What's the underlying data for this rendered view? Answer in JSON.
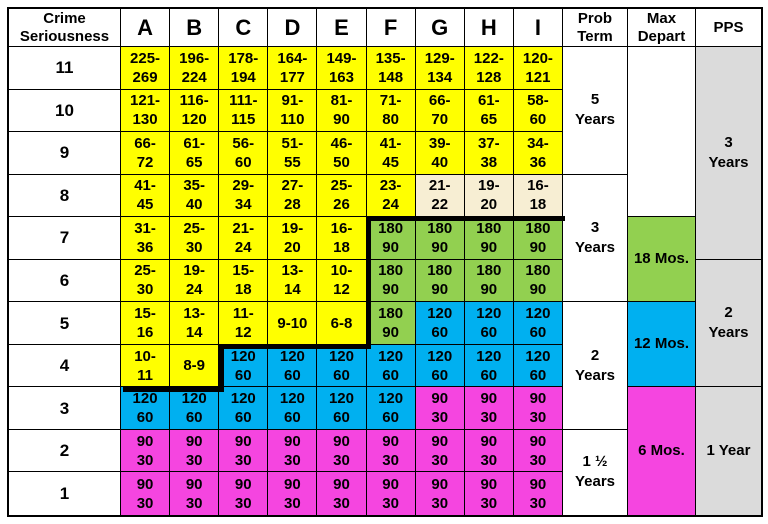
{
  "colors": {
    "yellow": "#FFFF00",
    "cream": "#F7EED3",
    "green": "#92D050",
    "blue": "#00B0F0",
    "magenta": "#F545E0",
    "gray": "#DBDBDB",
    "white": "#FFFFFF",
    "line": "#000000"
  },
  "header": {
    "crime_label_lines": [
      "Crime",
      "Seriousness"
    ],
    "offense_columns": [
      "A",
      "B",
      "C",
      "D",
      "E",
      "F",
      "G",
      "H",
      "I"
    ],
    "prob_term_lines": [
      "Prob",
      "Term"
    ],
    "max_depart_lines": [
      "Max",
      "Depart"
    ],
    "pps_label": "PPS"
  },
  "rows": [
    {
      "label": "11",
      "cells": [
        {
          "lines": [
            "225-",
            "269"
          ],
          "color": "yellow"
        },
        {
          "lines": [
            "196-",
            "224"
          ],
          "color": "yellow"
        },
        {
          "lines": [
            "178-",
            "194"
          ],
          "color": "yellow"
        },
        {
          "lines": [
            "164-",
            "177"
          ],
          "color": "yellow"
        },
        {
          "lines": [
            "149-",
            "163"
          ],
          "color": "yellow"
        },
        {
          "lines": [
            "135-",
            "148"
          ],
          "color": "yellow"
        },
        {
          "lines": [
            "129-",
            "134"
          ],
          "color": "yellow"
        },
        {
          "lines": [
            "122-",
            "128"
          ],
          "color": "yellow"
        },
        {
          "lines": [
            "120-",
            "121"
          ],
          "color": "yellow"
        }
      ]
    },
    {
      "label": "10",
      "cells": [
        {
          "lines": [
            "121-",
            "130"
          ],
          "color": "yellow"
        },
        {
          "lines": [
            "116-",
            "120"
          ],
          "color": "yellow"
        },
        {
          "lines": [
            "111-",
            "115"
          ],
          "color": "yellow"
        },
        {
          "lines": [
            "91-",
            "110"
          ],
          "color": "yellow"
        },
        {
          "lines": [
            "81-",
            "90"
          ],
          "color": "yellow"
        },
        {
          "lines": [
            "71-",
            "80"
          ],
          "color": "yellow"
        },
        {
          "lines": [
            "66-",
            "70"
          ],
          "color": "yellow"
        },
        {
          "lines": [
            "61-",
            "65"
          ],
          "color": "yellow"
        },
        {
          "lines": [
            "58-",
            "60"
          ],
          "color": "yellow"
        }
      ]
    },
    {
      "label": "9",
      "cells": [
        {
          "lines": [
            "66-",
            "72"
          ],
          "color": "yellow"
        },
        {
          "lines": [
            "61-",
            "65"
          ],
          "color": "yellow"
        },
        {
          "lines": [
            "56-",
            "60"
          ],
          "color": "yellow"
        },
        {
          "lines": [
            "51-",
            "55"
          ],
          "color": "yellow"
        },
        {
          "lines": [
            "46-",
            "50"
          ],
          "color": "yellow"
        },
        {
          "lines": [
            "41-",
            "45"
          ],
          "color": "yellow"
        },
        {
          "lines": [
            "39-",
            "40"
          ],
          "color": "yellow"
        },
        {
          "lines": [
            "37-",
            "38"
          ],
          "color": "yellow"
        },
        {
          "lines": [
            "34-",
            "36"
          ],
          "color": "yellow"
        }
      ]
    },
    {
      "label": "8",
      "cells": [
        {
          "lines": [
            "41-",
            "45"
          ],
          "color": "yellow"
        },
        {
          "lines": [
            "35-",
            "40"
          ],
          "color": "yellow"
        },
        {
          "lines": [
            "29-",
            "34"
          ],
          "color": "yellow"
        },
        {
          "lines": [
            "27-",
            "28"
          ],
          "color": "yellow"
        },
        {
          "lines": [
            "25-",
            "26"
          ],
          "color": "yellow"
        },
        {
          "lines": [
            "23-",
            "24"
          ],
          "color": "yellow"
        },
        {
          "lines": [
            "21-",
            "22"
          ],
          "color": "cream"
        },
        {
          "lines": [
            "19-",
            "20"
          ],
          "color": "cream"
        },
        {
          "lines": [
            "16-",
            "18"
          ],
          "color": "cream"
        }
      ]
    },
    {
      "label": "7",
      "cells": [
        {
          "lines": [
            "31-",
            "36"
          ],
          "color": "yellow"
        },
        {
          "lines": [
            "25-",
            "30"
          ],
          "color": "yellow"
        },
        {
          "lines": [
            "21-",
            "24"
          ],
          "color": "yellow"
        },
        {
          "lines": [
            "19-",
            "20"
          ],
          "color": "yellow"
        },
        {
          "lines": [
            "16-",
            "18"
          ],
          "color": "yellow"
        },
        {
          "lines": [
            "180",
            "90"
          ],
          "color": "green"
        },
        {
          "lines": [
            "180",
            "90"
          ],
          "color": "green"
        },
        {
          "lines": [
            "180",
            "90"
          ],
          "color": "green"
        },
        {
          "lines": [
            "180",
            "90"
          ],
          "color": "green"
        }
      ]
    },
    {
      "label": "6",
      "cells": [
        {
          "lines": [
            "25-",
            "30"
          ],
          "color": "yellow"
        },
        {
          "lines": [
            "19-",
            "24"
          ],
          "color": "yellow"
        },
        {
          "lines": [
            "15-",
            "18"
          ],
          "color": "yellow"
        },
        {
          "lines": [
            "13-",
            "14"
          ],
          "color": "yellow"
        },
        {
          "lines": [
            "10-",
            "12"
          ],
          "color": "yellow"
        },
        {
          "lines": [
            "180",
            "90"
          ],
          "color": "green"
        },
        {
          "lines": [
            "180",
            "90"
          ],
          "color": "green"
        },
        {
          "lines": [
            "180",
            "90"
          ],
          "color": "green"
        },
        {
          "lines": [
            "180",
            "90"
          ],
          "color": "green"
        }
      ]
    },
    {
      "label": "5",
      "cells": [
        {
          "lines": [
            "15-",
            "16"
          ],
          "color": "yellow"
        },
        {
          "lines": [
            "13-",
            "14"
          ],
          "color": "yellow"
        },
        {
          "lines": [
            "11-",
            "12"
          ],
          "color": "yellow"
        },
        {
          "lines": [
            "9-10"
          ],
          "color": "yellow"
        },
        {
          "lines": [
            "6-8"
          ],
          "color": "yellow"
        },
        {
          "lines": [
            "180",
            "90"
          ],
          "color": "green"
        },
        {
          "lines": [
            "120",
            "60"
          ],
          "color": "blue"
        },
        {
          "lines": [
            "120",
            "60"
          ],
          "color": "blue"
        },
        {
          "lines": [
            "120",
            "60"
          ],
          "color": "blue"
        }
      ]
    },
    {
      "label": "4",
      "cells": [
        {
          "lines": [
            "10-",
            "11"
          ],
          "color": "yellow"
        },
        {
          "lines": [
            "8-9"
          ],
          "color": "yellow"
        },
        {
          "lines": [
            "120",
            "60"
          ],
          "color": "blue"
        },
        {
          "lines": [
            "120",
            "60"
          ],
          "color": "blue"
        },
        {
          "lines": [
            "120",
            "60"
          ],
          "color": "blue"
        },
        {
          "lines": [
            "120",
            "60"
          ],
          "color": "blue"
        },
        {
          "lines": [
            "120",
            "60"
          ],
          "color": "blue"
        },
        {
          "lines": [
            "120",
            "60"
          ],
          "color": "blue"
        },
        {
          "lines": [
            "120",
            "60"
          ],
          "color": "blue"
        }
      ]
    },
    {
      "label": "3",
      "cells": [
        {
          "lines": [
            "120",
            "60"
          ],
          "color": "blue"
        },
        {
          "lines": [
            "120",
            "60"
          ],
          "color": "blue"
        },
        {
          "lines": [
            "120",
            "60"
          ],
          "color": "blue"
        },
        {
          "lines": [
            "120",
            "60"
          ],
          "color": "blue"
        },
        {
          "lines": [
            "120",
            "60"
          ],
          "color": "blue"
        },
        {
          "lines": [
            "120",
            "60"
          ],
          "color": "blue"
        },
        {
          "lines": [
            "90",
            "30"
          ],
          "color": "magenta"
        },
        {
          "lines": [
            "90",
            "30"
          ],
          "color": "magenta"
        },
        {
          "lines": [
            "90",
            "30"
          ],
          "color": "magenta"
        }
      ]
    },
    {
      "label": "2",
      "cells": [
        {
          "lines": [
            "90",
            "30"
          ],
          "color": "magenta"
        },
        {
          "lines": [
            "90",
            "30"
          ],
          "color": "magenta"
        },
        {
          "lines": [
            "90",
            "30"
          ],
          "color": "magenta"
        },
        {
          "lines": [
            "90",
            "30"
          ],
          "color": "magenta"
        },
        {
          "lines": [
            "90",
            "30"
          ],
          "color": "magenta"
        },
        {
          "lines": [
            "90",
            "30"
          ],
          "color": "magenta"
        },
        {
          "lines": [
            "90",
            "30"
          ],
          "color": "magenta"
        },
        {
          "lines": [
            "90",
            "30"
          ],
          "color": "magenta"
        },
        {
          "lines": [
            "90",
            "30"
          ],
          "color": "magenta"
        }
      ]
    },
    {
      "label": "1",
      "cells": [
        {
          "lines": [
            "90",
            "30"
          ],
          "color": "magenta"
        },
        {
          "lines": [
            "90",
            "30"
          ],
          "color": "magenta"
        },
        {
          "lines": [
            "90",
            "30"
          ],
          "color": "magenta"
        },
        {
          "lines": [
            "90",
            "30"
          ],
          "color": "magenta"
        },
        {
          "lines": [
            "90",
            "30"
          ],
          "color": "magenta"
        },
        {
          "lines": [
            "90",
            "30"
          ],
          "color": "magenta"
        },
        {
          "lines": [
            "90",
            "30"
          ],
          "color": "magenta"
        },
        {
          "lines": [
            "90",
            "30"
          ],
          "color": "magenta"
        },
        {
          "lines": [
            "90",
            "30"
          ],
          "color": "magenta"
        }
      ]
    }
  ],
  "prob_term_cells": [
    {
      "lines": [
        "5",
        "Years"
      ],
      "color": "white",
      "row_span": 3
    },
    {
      "lines": [
        "3",
        "Years"
      ],
      "color": "white",
      "row_span": 3
    },
    {
      "lines": [
        "2",
        "Years"
      ],
      "color": "white",
      "row_span": 3
    },
    {
      "lines": [
        "1 ½",
        "Years"
      ],
      "color": "white",
      "row_span": 2
    }
  ],
  "max_depart_cells": [
    {
      "lines": [],
      "color": "white",
      "row_span": 4
    },
    {
      "lines": [
        "18 Mos."
      ],
      "color": "green",
      "row_span": 2
    },
    {
      "lines": [
        "12 Mos."
      ],
      "color": "blue",
      "row_span": 2
    },
    {
      "lines": [
        "6 Mos."
      ],
      "color": "magenta",
      "row_span": 3
    }
  ],
  "pps_cells": [
    {
      "lines": [
        "3",
        "Years"
      ],
      "color": "gray",
      "row_span": 5
    },
    {
      "lines": [
        "2",
        "Years"
      ],
      "color": "gray",
      "row_span": 3
    },
    {
      "lines": [
        "1 Year"
      ],
      "color": "gray",
      "row_span": 3
    }
  ]
}
